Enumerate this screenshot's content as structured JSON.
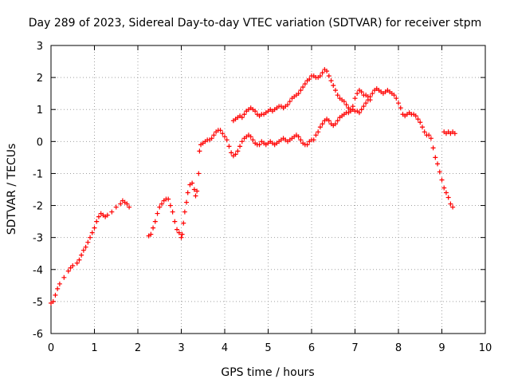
{
  "chart_data": {
    "type": "scatter",
    "title": "Day 289 of 2023, Sidereal Day-to-day VTEC variation (SDTVAR) for receiver stpm",
    "xlabel": "GPS time / hours",
    "ylabel": "SDTVAR / TECUs",
    "xlim": [
      0,
      10
    ],
    "ylim": [
      -6,
      3
    ],
    "xticks": [
      "0",
      "1",
      "2",
      "3",
      "4",
      "5",
      "6",
      "7",
      "8",
      "9",
      "10"
    ],
    "yticks": [
      "-6",
      "-5",
      "-4",
      "-3",
      "-2",
      "-1",
      "0",
      "1",
      "2",
      "3"
    ],
    "grid": true,
    "marker": "plus",
    "series_color": "#ff0000",
    "segments": [
      {
        "name": "segment-1",
        "points": [
          [
            0.0,
            -5.05
          ],
          [
            0.05,
            -5.0
          ],
          [
            0.1,
            -4.8
          ],
          [
            0.15,
            -4.6
          ],
          [
            0.2,
            -4.45
          ],
          [
            0.3,
            -4.25
          ],
          [
            0.4,
            -4.05
          ],
          [
            0.45,
            -3.95
          ],
          [
            0.5,
            -3.88
          ],
          [
            0.6,
            -3.8
          ],
          [
            0.65,
            -3.7
          ],
          [
            0.7,
            -3.55
          ],
          [
            0.75,
            -3.4
          ],
          [
            0.8,
            -3.3
          ],
          [
            0.85,
            -3.15
          ],
          [
            0.9,
            -3.0
          ],
          [
            0.95,
            -2.85
          ],
          [
            1.0,
            -2.7
          ],
          [
            1.05,
            -2.5
          ],
          [
            1.1,
            -2.35
          ],
          [
            1.15,
            -2.25
          ],
          [
            1.2,
            -2.3
          ],
          [
            1.25,
            -2.35
          ],
          [
            1.3,
            -2.3
          ],
          [
            1.4,
            -2.2
          ],
          [
            1.5,
            -2.05
          ],
          [
            1.6,
            -1.95
          ],
          [
            1.65,
            -1.85
          ],
          [
            1.7,
            -1.9
          ],
          [
            1.75,
            -1.95
          ],
          [
            1.8,
            -2.05
          ]
        ]
      },
      {
        "name": "segment-2",
        "points": [
          [
            2.25,
            -2.95
          ],
          [
            2.3,
            -2.9
          ],
          [
            2.35,
            -2.7
          ],
          [
            2.4,
            -2.5
          ],
          [
            2.45,
            -2.25
          ],
          [
            2.5,
            -2.05
          ],
          [
            2.55,
            -1.95
          ],
          [
            2.6,
            -1.85
          ],
          [
            2.65,
            -1.8
          ],
          [
            2.7,
            -1.8
          ],
          [
            2.75,
            -2.0
          ],
          [
            2.8,
            -2.2
          ],
          [
            2.85,
            -2.5
          ],
          [
            2.9,
            -2.75
          ],
          [
            2.95,
            -2.85
          ],
          [
            3.0,
            -3.0
          ],
          [
            3.02,
            -2.9
          ],
          [
            3.05,
            -2.55
          ],
          [
            3.08,
            -2.2
          ],
          [
            3.12,
            -1.9
          ],
          [
            3.15,
            -1.6
          ],
          [
            3.2,
            -1.35
          ],
          [
            3.25,
            -1.3
          ],
          [
            3.3,
            -1.5
          ],
          [
            3.33,
            -1.7
          ],
          [
            3.36,
            -1.55
          ],
          [
            3.4,
            -1.0
          ],
          [
            3.42,
            -0.3
          ],
          [
            3.45,
            -0.1
          ],
          [
            3.5,
            -0.05
          ],
          [
            3.55,
            0.0
          ],
          [
            3.6,
            0.05
          ],
          [
            3.65,
            0.05
          ],
          [
            3.7,
            0.1
          ],
          [
            3.75,
            0.2
          ],
          [
            3.8,
            0.3
          ],
          [
            3.85,
            0.35
          ],
          [
            3.9,
            0.35
          ],
          [
            3.95,
            0.25
          ],
          [
            4.0,
            0.15
          ],
          [
            4.05,
            0.05
          ],
          [
            4.1,
            -0.15
          ],
          [
            4.15,
            -0.35
          ],
          [
            4.2,
            -0.45
          ],
          [
            4.25,
            -0.4
          ],
          [
            4.3,
            -0.3
          ],
          [
            4.35,
            -0.15
          ],
          [
            4.4,
            0.0
          ],
          [
            4.45,
            0.1
          ],
          [
            4.5,
            0.15
          ],
          [
            4.55,
            0.2
          ],
          [
            4.6,
            0.15
          ],
          [
            4.65,
            0.05
          ],
          [
            4.7,
            -0.05
          ],
          [
            4.75,
            -0.1
          ],
          [
            4.8,
            -0.1
          ],
          [
            4.85,
            0.0
          ],
          [
            4.9,
            -0.05
          ],
          [
            4.95,
            -0.1
          ],
          [
            5.0,
            -0.05
          ],
          [
            5.05,
            0.0
          ],
          [
            5.1,
            -0.05
          ],
          [
            5.15,
            -0.1
          ],
          [
            5.2,
            -0.05
          ],
          [
            5.25,
            0.0
          ],
          [
            5.3,
            0.05
          ],
          [
            5.35,
            0.1
          ],
          [
            5.4,
            0.05
          ],
          [
            5.45,
            0.0
          ],
          [
            5.5,
            0.05
          ],
          [
            5.55,
            0.1
          ],
          [
            5.6,
            0.15
          ],
          [
            5.65,
            0.2
          ],
          [
            5.7,
            0.15
          ],
          [
            5.75,
            0.05
          ],
          [
            5.8,
            -0.05
          ],
          [
            5.85,
            -0.1
          ],
          [
            5.9,
            -0.1
          ],
          [
            5.95,
            0.0
          ],
          [
            6.0,
            0.05
          ],
          [
            6.05,
            0.05
          ],
          [
            6.1,
            0.2
          ],
          [
            6.15,
            0.3
          ],
          [
            6.2,
            0.45
          ],
          [
            6.25,
            0.55
          ],
          [
            6.3,
            0.65
          ],
          [
            6.35,
            0.7
          ],
          [
            6.4,
            0.65
          ],
          [
            6.45,
            0.55
          ],
          [
            6.5,
            0.5
          ],
          [
            6.55,
            0.55
          ],
          [
            6.6,
            0.65
          ],
          [
            6.65,
            0.75
          ],
          [
            6.7,
            0.8
          ],
          [
            6.75,
            0.85
          ],
          [
            6.8,
            0.9
          ],
          [
            6.85,
            0.9
          ],
          [
            6.9,
            0.95
          ],
          [
            6.95,
            1.0
          ],
          [
            7.0,
            0.95
          ],
          [
            7.05,
            0.95
          ],
          [
            7.1,
            0.9
          ],
          [
            7.15,
            1.0
          ],
          [
            7.2,
            1.1
          ],
          [
            7.25,
            1.2
          ],
          [
            7.3,
            1.3
          ],
          [
            7.35,
            1.4
          ],
          [
            7.4,
            1.5
          ],
          [
            7.45,
            1.6
          ],
          [
            7.5,
            1.65
          ],
          [
            7.55,
            1.6
          ],
          [
            7.6,
            1.55
          ],
          [
            7.65,
            1.5
          ],
          [
            7.7,
            1.55
          ],
          [
            7.75,
            1.6
          ],
          [
            7.8,
            1.55
          ],
          [
            7.85,
            1.5
          ],
          [
            7.9,
            1.45
          ],
          [
            7.95,
            1.35
          ],
          [
            8.0,
            1.2
          ],
          [
            8.05,
            1.05
          ],
          [
            8.1,
            0.85
          ],
          [
            8.15,
            0.8
          ],
          [
            8.2,
            0.85
          ],
          [
            8.25,
            0.9
          ],
          [
            8.3,
            0.85
          ],
          [
            8.35,
            0.85
          ],
          [
            8.4,
            0.8
          ],
          [
            8.45,
            0.7
          ],
          [
            8.5,
            0.6
          ],
          [
            8.55,
            0.45
          ],
          [
            8.6,
            0.3
          ],
          [
            8.65,
            0.2
          ],
          [
            8.7,
            0.2
          ],
          [
            8.75,
            0.1
          ],
          [
            8.8,
            -0.2
          ],
          [
            8.85,
            -0.5
          ],
          [
            8.9,
            -0.7
          ],
          [
            8.95,
            -0.95
          ],
          [
            9.0,
            -1.2
          ],
          [
            9.05,
            -1.45
          ],
          [
            9.1,
            -1.6
          ],
          [
            9.15,
            -1.75
          ],
          [
            9.2,
            -1.95
          ],
          [
            9.25,
            -2.05
          ]
        ]
      },
      {
        "name": "segment-3",
        "points": [
          [
            4.2,
            0.65
          ],
          [
            4.25,
            0.7
          ],
          [
            4.3,
            0.75
          ],
          [
            4.35,
            0.8
          ],
          [
            4.4,
            0.75
          ],
          [
            4.45,
            0.85
          ],
          [
            4.5,
            0.95
          ],
          [
            4.55,
            1.0
          ],
          [
            4.6,
            1.05
          ],
          [
            4.65,
            1.0
          ],
          [
            4.7,
            0.95
          ],
          [
            4.75,
            0.85
          ],
          [
            4.8,
            0.8
          ],
          [
            4.85,
            0.85
          ],
          [
            4.9,
            0.85
          ],
          [
            4.95,
            0.9
          ],
          [
            5.0,
            0.95
          ],
          [
            5.05,
            1.0
          ],
          [
            5.1,
            0.95
          ],
          [
            5.15,
            1.0
          ],
          [
            5.2,
            1.05
          ],
          [
            5.25,
            1.1
          ],
          [
            5.3,
            1.1
          ],
          [
            5.35,
            1.05
          ],
          [
            5.4,
            1.1
          ],
          [
            5.45,
            1.15
          ],
          [
            5.5,
            1.25
          ],
          [
            5.55,
            1.35
          ],
          [
            5.6,
            1.4
          ],
          [
            5.65,
            1.45
          ],
          [
            5.7,
            1.5
          ],
          [
            5.75,
            1.6
          ],
          [
            5.8,
            1.7
          ],
          [
            5.85,
            1.8
          ],
          [
            5.9,
            1.9
          ],
          [
            5.95,
            1.95
          ],
          [
            6.0,
            2.05
          ],
          [
            6.05,
            2.05
          ],
          [
            6.1,
            2.0
          ],
          [
            6.15,
            2.0
          ],
          [
            6.2,
            2.05
          ],
          [
            6.25,
            2.15
          ],
          [
            6.3,
            2.25
          ],
          [
            6.35,
            2.2
          ],
          [
            6.4,
            2.05
          ],
          [
            6.45,
            1.9
          ],
          [
            6.5,
            1.75
          ],
          [
            6.55,
            1.6
          ],
          [
            6.6,
            1.45
          ],
          [
            6.65,
            1.35
          ],
          [
            6.7,
            1.3
          ],
          [
            6.75,
            1.25
          ],
          [
            6.8,
            1.15
          ],
          [
            6.85,
            1.05
          ],
          [
            6.9,
            1.0
          ],
          [
            6.95,
            1.1
          ],
          [
            7.0,
            1.35
          ],
          [
            7.05,
            1.5
          ],
          [
            7.1,
            1.6
          ],
          [
            7.15,
            1.55
          ],
          [
            7.2,
            1.45
          ],
          [
            7.25,
            1.45
          ],
          [
            7.3,
            1.4
          ],
          [
            7.35,
            1.3
          ]
        ]
      },
      {
        "name": "segment-4",
        "points": [
          [
            9.05,
            0.3
          ],
          [
            9.1,
            0.25
          ],
          [
            9.15,
            0.3
          ],
          [
            9.2,
            0.25
          ],
          [
            9.25,
            0.3
          ],
          [
            9.3,
            0.25
          ]
        ]
      }
    ]
  }
}
